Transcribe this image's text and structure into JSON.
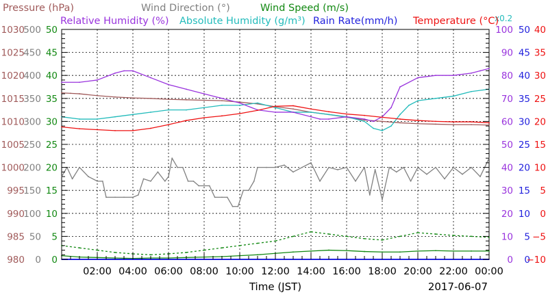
{
  "chart_data": {
    "type": "line",
    "date": "2017-06-07",
    "xlabel": "Time (JST)",
    "x_ticks": [
      "02:00",
      "04:00",
      "06:00",
      "08:00",
      "10:00",
      "12:00",
      "14:00",
      "16:00",
      "18:00",
      "20:00",
      "22:00",
      "00:00"
    ],
    "x_range_hours": [
      0,
      24
    ],
    "grid": true,
    "legend": [
      {
        "name": "Pressure (hPa)",
        "color": "#a05a5a",
        "row": 1
      },
      {
        "name": "Wind Direction (°)",
        "color": "#808080",
        "row": 1
      },
      {
        "name": "Wind Speed (m/s)",
        "color": "#118811",
        "row": 1
      },
      {
        "name": "Relative Humidity (%)",
        "color": "#9933dd",
        "row": 2
      },
      {
        "name": "Absolute Humidity (g/m³)",
        "color": "#22bbbb",
        "row": 2,
        "scale_note": "x0.2"
      },
      {
        "name": "Rain Rate(mm/h)",
        "color": "#2222dd",
        "row": 2
      },
      {
        "name": "Temperature (°C)",
        "color": "#ee1111",
        "row": 2
      }
    ],
    "axes": {
      "pressure": {
        "color": "#a05a5a",
        "side": "left",
        "ticks": [
          "1030",
          "1025",
          "1020",
          "1015",
          "1010",
          "1005",
          "1000",
          "995",
          "990",
          "985",
          "980"
        ],
        "range": [
          980,
          1030
        ]
      },
      "wind_direction": {
        "color": "#808080",
        "side": "left",
        "ticks": [
          "500",
          "450",
          "400",
          "350",
          "300",
          "250",
          "200",
          "150",
          "100",
          "50",
          "0"
        ],
        "range": [
          0,
          500
        ]
      },
      "wind_speed": {
        "color": "#118811",
        "side": "left",
        "ticks": [
          "50",
          "45",
          "40",
          "35",
          "30",
          "25",
          "20",
          "15",
          "10",
          "5",
          "0"
        ],
        "range": [
          0,
          50
        ]
      },
      "relative_humidity": {
        "color": "#9933dd",
        "side": "right",
        "ticks": [
          "100",
          "90",
          "80",
          "70",
          "60",
          "50",
          "40",
          "30",
          "20",
          "10",
          "0"
        ],
        "range": [
          0,
          100
        ]
      },
      "rain_rate": {
        "color": "#2222dd",
        "side": "right",
        "ticks": [
          "50",
          "45",
          "40",
          "35",
          "30",
          "25",
          "20",
          "15",
          "10",
          "5",
          "0"
        ],
        "range": [
          0,
          50
        ]
      },
      "temperature": {
        "color": "#ee1111",
        "side": "right",
        "ticks": [
          "40",
          "35",
          "30",
          "25",
          "20",
          "15",
          "10",
          "5",
          "0",
          "−5",
          "−10"
        ],
        "range": [
          -10,
          40
        ]
      }
    },
    "series": [
      {
        "name": "Pressure (hPa)",
        "axis": "pressure",
        "color": "#a05a5a",
        "x": [
          0,
          0.5,
          1,
          2,
          3,
          4,
          5,
          6,
          7,
          8,
          9,
          10,
          11,
          12,
          13,
          14,
          15,
          16,
          17,
          18,
          19,
          20,
          21,
          22,
          23,
          24
        ],
        "values": [
          1016.2,
          1016.1,
          1016.0,
          1015.6,
          1015.3,
          1015.1,
          1015.0,
          1014.8,
          1014.7,
          1014.6,
          1014.5,
          1014.2,
          1013.8,
          1013.2,
          1012.7,
          1012.0,
          1011.5,
          1010.9,
          1010.3,
          1010.0,
          1009.7,
          1009.5,
          1009.4,
          1009.3,
          1009.3,
          1009.2
        ]
      },
      {
        "name": "Relative Humidity (%)",
        "axis": "relative_humidity",
        "color": "#9933dd",
        "x": [
          0,
          1,
          2,
          3,
          3.5,
          4,
          5,
          6,
          7,
          8,
          9,
          10,
          11,
          12,
          13,
          14,
          14.5,
          15,
          16,
          17,
          17.5,
          18,
          18.5,
          19,
          20,
          21,
          22,
          23,
          23.5,
          24
        ],
        "values": [
          77,
          77,
          78,
          81,
          82,
          82,
          79,
          76,
          74,
          72,
          70,
          68,
          65,
          64,
          64,
          62,
          61,
          61,
          62,
          61,
          60,
          62,
          66,
          75,
          79,
          80,
          80,
          81,
          82,
          83
        ]
      },
      {
        "name": "Absolute Humidity (g/m³) x0.2",
        "axis": "relative_humidity",
        "color": "#22bbbb",
        "x": [
          0,
          1,
          2,
          3,
          4,
          5,
          6,
          7,
          8,
          9,
          10,
          11,
          12,
          13,
          14,
          15,
          16,
          17,
          17.5,
          18,
          18.5,
          19,
          19.5,
          20,
          21,
          22,
          23,
          24
        ],
        "values": [
          62,
          61,
          61,
          62,
          63,
          64,
          65,
          65,
          66,
          67,
          67,
          68,
          66,
          64,
          64,
          63,
          62,
          60,
          57,
          56,
          58,
          63,
          67,
          69,
          70,
          71,
          73,
          74
        ]
      },
      {
        "name": "Temperature (°C)",
        "axis": "temperature",
        "color": "#ee1111",
        "x": [
          0,
          1,
          2,
          3,
          4,
          5,
          6,
          7,
          8,
          9,
          10,
          11,
          12,
          13,
          14,
          15,
          16,
          17,
          18,
          19,
          20,
          21,
          22,
          23,
          24
        ],
        "values": [
          18.8,
          18.4,
          18.2,
          18.0,
          18.0,
          18.5,
          19.3,
          20.2,
          20.8,
          21.2,
          21.7,
          22.4,
          23.3,
          23.4,
          22.7,
          22.1,
          21.6,
          21.3,
          20.9,
          20.5,
          20.2,
          20.0,
          19.9,
          19.9,
          19.7
        ]
      },
      {
        "name": "Wind Direction (°)",
        "axis": "wind_direction",
        "color": "#808080",
        "x": [
          0,
          0.3,
          0.6,
          1,
          1.5,
          2,
          2.3,
          2.5,
          3,
          3.5,
          4,
          4.3,
          4.6,
          5,
          5.4,
          5.8,
          6,
          6.2,
          6.5,
          6.8,
          7.1,
          7.4,
          7.7,
          8,
          8.3,
          8.6,
          9,
          9.3,
          9.6,
          9.9,
          10.2,
          10.5,
          10.8,
          11,
          11.5,
          12,
          12.5,
          13,
          13.5,
          14,
          14.5,
          15,
          15.5,
          16,
          16.5,
          17,
          17.3,
          17.6,
          18,
          18.4,
          18.8,
          19.2,
          19.6,
          20,
          20.5,
          21,
          21.5,
          22,
          22.5,
          23,
          23.5,
          24
        ],
        "values": [
          180,
          200,
          175,
          200,
          180,
          170,
          170,
          135,
          135,
          135,
          135,
          140,
          175,
          170,
          190,
          170,
          180,
          220,
          200,
          200,
          170,
          170,
          160,
          160,
          160,
          135,
          135,
          135,
          115,
          115,
          150,
          150,
          170,
          200,
          200,
          200,
          205,
          190,
          200,
          210,
          170,
          200,
          195,
          200,
          170,
          200,
          140,
          195,
          130,
          200,
          190,
          200,
          170,
          200,
          185,
          200,
          175,
          200,
          185,
          200,
          180,
          220
        ]
      },
      {
        "name": "Wind Speed (m/s)",
        "axis": "wind_speed",
        "color": "#118811",
        "style": "solid",
        "x": [
          0,
          1,
          2,
          3,
          4,
          5,
          6,
          7,
          8,
          9,
          10,
          11,
          12,
          13,
          14,
          15,
          16,
          17,
          18,
          19,
          20,
          21,
          22,
          23,
          24
        ],
        "values": [
          0.8,
          0.5,
          0.4,
          0.3,
          0.2,
          0.3,
          0.3,
          0.4,
          0.5,
          0.6,
          0.8,
          1.0,
          1.3,
          1.6,
          1.8,
          2.0,
          1.9,
          1.7,
          1.6,
          1.6,
          1.8,
          1.9,
          1.8,
          1.8,
          1.8
        ]
      },
      {
        "name": "Wind Speed gust (m/s)",
        "axis": "wind_speed",
        "color": "#118811",
        "style": "dashed",
        "x": [
          0,
          1,
          2,
          3,
          4,
          5,
          6,
          7,
          8,
          9,
          10,
          11,
          12,
          13,
          14,
          15,
          16,
          17,
          18,
          19,
          20,
          21,
          22,
          23,
          24
        ],
        "values": [
          3.0,
          2.5,
          2.0,
          1.5,
          1.2,
          1.0,
          1.2,
          1.5,
          2.0,
          2.5,
          3.0,
          3.5,
          4.0,
          5.0,
          6.0,
          5.5,
          5.0,
          4.5,
          4.2,
          5.0,
          5.8,
          5.5,
          5.2,
          5.0,
          4.8
        ]
      },
      {
        "name": "Rain Rate(mm/h)",
        "axis": "rain_rate",
        "color": "#2222dd",
        "x": [
          0,
          24
        ],
        "values": [
          0,
          0
        ]
      }
    ]
  }
}
